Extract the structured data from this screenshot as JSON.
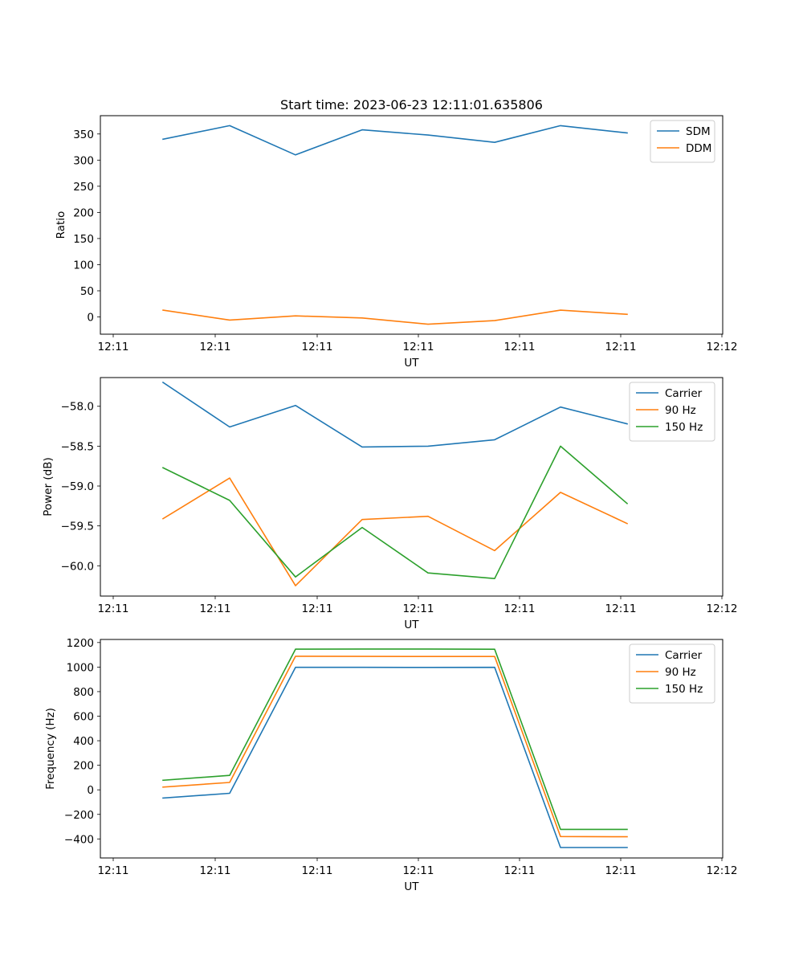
{
  "colors": {
    "blue": "#1f77b4",
    "orange": "#ff7f0e",
    "green": "#2ca02c"
  },
  "chart_data": [
    {
      "type": "line",
      "title": "Start time: 2023-06-23 12:11:01.635806",
      "xlabel": "UT",
      "ylabel": "Ratio",
      "x_ticks": [
        "12:11",
        "12:11",
        "12:11",
        "12:11",
        "12:11",
        "12:11",
        "12:12"
      ],
      "y_ticks": [
        "0",
        "50",
        "100",
        "150",
        "200",
        "250",
        "300",
        "350"
      ],
      "ylim": [
        -33,
        385
      ],
      "legend": "top-right",
      "series": [
        {
          "name": "SDM",
          "color": "#1f77b4",
          "values": [
            340,
            366,
            310,
            358,
            348,
            334,
            366,
            352
          ]
        },
        {
          "name": "DDM",
          "color": "#ff7f0e",
          "values": [
            13,
            -6,
            2,
            -2,
            -14,
            -7,
            13,
            5
          ]
        }
      ]
    },
    {
      "type": "line",
      "title": "",
      "xlabel": "UT",
      "ylabel": "Power (dB)",
      "x_ticks": [
        "12:11",
        "12:11",
        "12:11",
        "12:11",
        "12:11",
        "12:11",
        "12:12"
      ],
      "y_ticks": [
        "−58.0",
        "−58.5",
        "−59.0",
        "−59.5",
        "−60.0"
      ],
      "ylim": [
        -60.38,
        -57.64
      ],
      "legend": "top-right",
      "series": [
        {
          "name": "Carrier",
          "color": "#1f77b4",
          "values": [
            -57.7,
            -58.26,
            -57.99,
            -58.51,
            -58.5,
            -58.42,
            -58.01,
            -58.22
          ]
        },
        {
          "name": "90 Hz",
          "color": "#ff7f0e",
          "values": [
            -59.41,
            -58.9,
            -60.25,
            -59.42,
            -59.38,
            -59.81,
            -59.08,
            -59.47
          ]
        },
        {
          "name": "150 Hz",
          "color": "#2ca02c",
          "values": [
            -58.77,
            -59.18,
            -60.14,
            -59.52,
            -60.09,
            -60.16,
            -58.5,
            -59.22
          ]
        }
      ]
    },
    {
      "type": "line",
      "title": "",
      "xlabel": "UT",
      "ylabel": "Frequency (Hz)",
      "x_ticks": [
        "12:11",
        "12:11",
        "12:11",
        "12:11",
        "12:11",
        "12:11",
        "12:12"
      ],
      "y_ticks": [
        "−400",
        "−200",
        "0",
        "200",
        "400",
        "600",
        "800",
        "1000",
        "1200"
      ],
      "ylim": [
        -555,
        1225
      ],
      "legend": "top-right",
      "series": [
        {
          "name": "Carrier",
          "color": "#1f77b4",
          "values": [
            -67,
            -28,
            998,
            998,
            997,
            998,
            -470,
            -470
          ]
        },
        {
          "name": "90 Hz",
          "color": "#ff7f0e",
          "values": [
            22,
            60,
            1088,
            1087,
            1086,
            1086,
            -380,
            -382
          ]
        },
        {
          "name": "150 Hz",
          "color": "#2ca02c",
          "values": [
            78,
            118,
            1146,
            1147,
            1147,
            1145,
            -322,
            -322
          ]
        }
      ]
    }
  ]
}
